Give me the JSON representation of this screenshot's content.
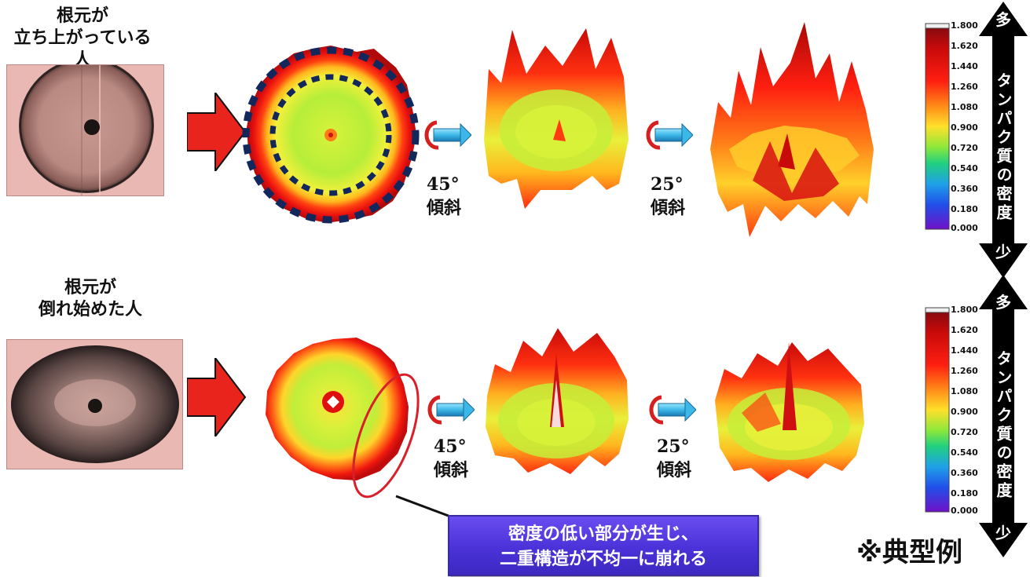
{
  "rows": [
    {
      "title_lines": [
        "根元が",
        "立ち上がっている人"
      ],
      "tilt1": [
        "45°",
        "傾斜"
      ],
      "tilt2": [
        "25°",
        "傾斜"
      ]
    },
    {
      "title_lines": [
        "根元が",
        "倒れ始めた人"
      ],
      "tilt1": [
        "45°",
        "傾斜"
      ],
      "tilt2": [
        "25°",
        "傾斜"
      ]
    }
  ],
  "colorbar": {
    "ticks": [
      "1.800",
      "1.620",
      "1.440",
      "1.260",
      "1.080",
      "0.900",
      "0.720",
      "0.540",
      "0.360",
      "0.180",
      "0.000"
    ],
    "top_label": "多",
    "bottom_label": "少",
    "axis_label": "タンパク質の密度"
  },
  "callout": {
    "line1": "密度の低い部分が生じ、",
    "line2": "二重構造が不均一に崩れる"
  },
  "note": "※典型例",
  "colors": {
    "big_arrow": "#e8241c",
    "rotation_arrow": "#d62020",
    "small_arrow": "#3bb8e8",
    "dashed_ring": "#12285c",
    "ellipse": "#d81f2a",
    "callout_bg": "#4a32d8"
  }
}
